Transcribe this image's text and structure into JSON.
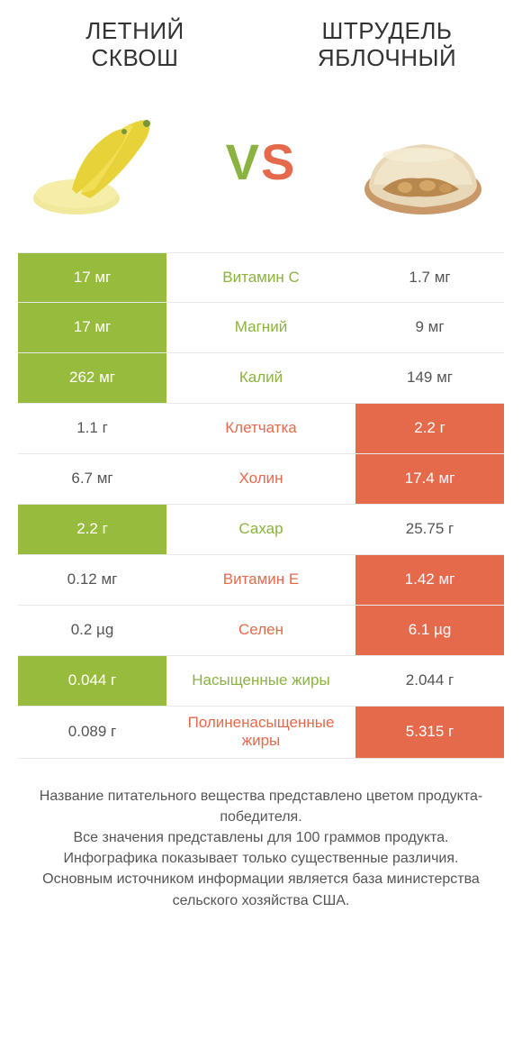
{
  "colors": {
    "left_win": "#97bb3d",
    "right_win": "#e56a4c",
    "left_text": "#8bb340",
    "right_text": "#e56a4c",
    "label_muted": "#555555",
    "background": "#ffffff"
  },
  "left": {
    "title_line1": "ЛЕТНИЙ",
    "title_line2": "СКВОШ"
  },
  "right": {
    "title_line1": "ШТРУДЕЛЬ",
    "title_line2": "ЯБЛОЧНЫЙ"
  },
  "vs": {
    "v": "V",
    "s": "S"
  },
  "rows": [
    {
      "label": "Витамин C",
      "left_val": "17 мг",
      "right_val": "1.7 мг",
      "winner": "left"
    },
    {
      "label": "Магний",
      "left_val": "17 мг",
      "right_val": "9 мг",
      "winner": "left"
    },
    {
      "label": "Калий",
      "left_val": "262 мг",
      "right_val": "149 мг",
      "winner": "left"
    },
    {
      "label": "Клетчатка",
      "left_val": "1.1 г",
      "right_val": "2.2 г",
      "winner": "right"
    },
    {
      "label": "Холин",
      "left_val": "6.7 мг",
      "right_val": "17.4 мг",
      "winner": "right"
    },
    {
      "label": "Сахар",
      "left_val": "2.2 г",
      "right_val": "25.75 г",
      "winner": "left"
    },
    {
      "label": "Витамин E",
      "left_val": "0.12 мг",
      "right_val": "1.42 мг",
      "winner": "right"
    },
    {
      "label": "Селен",
      "left_val": "0.2 µg",
      "right_val": "6.1 µg",
      "winner": "right"
    },
    {
      "label": "Насыщенные жиры",
      "left_val": "0.044 г",
      "right_val": "2.044 г",
      "winner": "left"
    },
    {
      "label": "Полиненасыщенные жиры",
      "left_val": "0.089 г",
      "right_val": "5.315 г",
      "winner": "right"
    }
  ],
  "footer": {
    "line1": "Название питательного вещества представлено цветом продукта-победителя.",
    "line2": "Все значения представлены для 100 граммов продукта.",
    "line3": "Инфографика показывает только существенные различия.",
    "line4": "Основным источником информации является база министерства сельского хозяйства США."
  },
  "typography": {
    "title_fontsize": 26,
    "vs_fontsize": 56,
    "cell_fontsize": 17,
    "footer_fontsize": 16
  }
}
